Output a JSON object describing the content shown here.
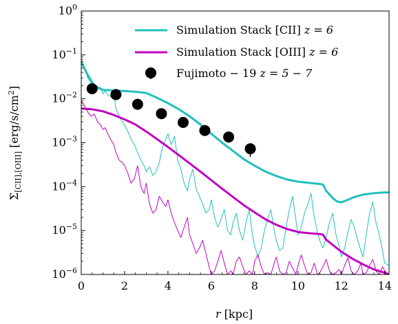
{
  "chart_data": {
    "type": "line",
    "xlabel": "r [kpc]",
    "ylabel": "Σ[CII],[OIII] [erg/s/cm²]",
    "ylabel_parts": {
      "base": "Σ",
      "sub": "[CII],[OIII]",
      "units": " [erg/s/cm",
      "sup": "2",
      "close": "]"
    },
    "xlabel_parts": {
      "var": "r",
      "units": " [kpc]"
    },
    "xlim": [
      0,
      14.2
    ],
    "ylim": [
      1e-06,
      1
    ],
    "yscale": "log",
    "x_ticks": [
      0,
      2,
      4,
      6,
      8,
      10,
      12,
      14
    ],
    "y_ticks": [
      {
        "value": 1e-06,
        "base": "10",
        "exp": "−6"
      },
      {
        "value": 1e-05,
        "base": "10",
        "exp": "−5"
      },
      {
        "value": 0.0001,
        "base": "10",
        "exp": "−4"
      },
      {
        "value": 0.001,
        "base": "10",
        "exp": "−3"
      },
      {
        "value": 0.01,
        "base": "10",
        "exp": "−2"
      },
      {
        "value": 0.1,
        "base": "10",
        "exp": "−1"
      },
      {
        "value": 1,
        "base": "10",
        "exp": "0"
      }
    ],
    "legend_position": "top-right",
    "grid": false,
    "series": [
      {
        "name": "Simulation Stack [CII] z = 6",
        "label_text": "Simulation Stack [CII] ",
        "label_math": "z = 6",
        "kind": "smooth",
        "color": "#1FBFBF",
        "x": [
          0,
          0.3,
          0.6,
          1.0,
          1.5,
          2.0,
          2.5,
          3.0,
          3.5,
          4.0,
          4.5,
          5.0,
          5.5,
          6.0,
          6.5,
          7.0,
          7.5,
          8.0,
          8.5,
          9.0,
          9.5,
          10.0,
          10.5,
          11.0,
          11.15,
          11.3,
          11.6,
          11.8,
          12.0,
          12.3,
          12.6,
          13.0,
          13.5,
          14.0,
          14.2
        ],
        "y": [
          0.07,
          0.035,
          0.02,
          0.016,
          0.0155,
          0.015,
          0.0145,
          0.0135,
          0.0105,
          0.008,
          0.0058,
          0.004,
          0.0026,
          0.0016,
          0.001,
          0.00065,
          0.00042,
          0.0003,
          0.00022,
          0.000175,
          0.000145,
          0.00013,
          0.000122,
          0.000115,
          0.000112,
          8e-05,
          5.5e-05,
          4.6e-05,
          4.4e-05,
          5e-05,
          5.8e-05,
          6.6e-05,
          7.1e-05,
          7.4e-05,
          7.4e-05
        ]
      },
      {
        "name": "Simulation Stack [OIII] z = 6",
        "label_text": "Simulation Stack [OIII] ",
        "label_math": "z = 6",
        "kind": "smooth",
        "color": "#C000C0",
        "x": [
          0,
          0.5,
          1.0,
          1.5,
          2.0,
          2.5,
          3.0,
          3.5,
          4.0,
          4.5,
          5.0,
          5.5,
          6.0,
          6.5,
          7.0,
          7.5,
          8.0,
          8.5,
          9.0,
          9.5,
          10.0,
          10.5,
          11.0,
          11.15,
          11.3,
          11.6,
          12.0,
          12.5,
          13.0,
          13.5,
          14.0,
          14.2
        ],
        "y": [
          0.006,
          0.0058,
          0.0052,
          0.0043,
          0.0034,
          0.0026,
          0.0018,
          0.0012,
          0.0008,
          0.00052,
          0.00034,
          0.00022,
          0.00014,
          9e-05,
          5.8e-05,
          3.8e-05,
          2.6e-05,
          1.8e-05,
          1.35e-05,
          1.08e-05,
          9.3e-06,
          8.7e-06,
          8.3e-06,
          8.1e-06,
          6.2e-06,
          4.7e-06,
          3.3e-06,
          2.3e-06,
          1.7e-06,
          1.3e-06,
          1.1e-06,
          1e-06
        ]
      },
      {
        "name": "Simulation Stack [CII] z = 6 (noisy)",
        "kind": "noisy",
        "color": "#1FBFBF",
        "x": [
          0,
          0.15,
          0.3,
          0.45,
          0.6,
          0.75,
          0.9,
          1.0,
          1.1,
          1.25,
          1.4,
          1.5,
          1.6,
          1.75,
          1.9,
          2.0,
          2.15,
          2.3,
          2.45,
          2.6,
          2.75,
          2.9,
          3.0,
          3.15,
          3.3,
          3.45,
          3.6,
          3.75,
          3.9,
          4.0,
          4.15,
          4.3,
          4.45,
          4.6,
          4.75,
          4.9,
          5.0,
          5.15,
          5.3,
          5.45,
          5.6,
          5.75,
          5.9,
          6.0,
          6.15,
          6.3,
          6.45,
          6.6,
          6.75,
          6.9,
          7.0,
          7.15,
          7.3,
          7.45,
          7.6,
          7.75,
          7.9,
          8.0,
          8.15,
          8.3,
          8.45,
          8.6,
          8.75,
          8.9,
          9.0,
          9.15,
          9.3,
          9.45,
          9.6,
          9.75,
          9.9,
          10.0,
          10.15,
          10.3,
          10.45,
          10.6,
          10.75,
          10.9,
          11.0,
          11.15,
          11.3,
          11.45,
          11.6,
          11.75,
          11.9,
          12.0,
          12.15,
          12.3,
          12.45,
          12.6,
          12.75,
          12.9,
          13.0,
          13.15,
          13.3,
          13.45,
          13.6,
          13.75,
          13.9,
          14.0,
          14.2
        ],
        "y": [
          0.08,
          0.05,
          0.03,
          0.022,
          0.017,
          0.016,
          0.018,
          0.013,
          0.015,
          0.012,
          0.011,
          0.013,
          0.006,
          0.004,
          0.003,
          0.0025,
          0.0018,
          0.0012,
          0.0009,
          0.0006,
          0.0004,
          0.0003,
          0.00022,
          0.00028,
          0.00018,
          0.00022,
          0.00035,
          0.0008,
          0.0012,
          0.0016,
          0.0009,
          0.0014,
          0.0004,
          0.00025,
          0.00012,
          8e-05,
          0.00015,
          0.00025,
          9e-05,
          6e-05,
          4e-05,
          2.5e-05,
          3e-05,
          5e-05,
          2e-05,
          1.2e-05,
          1.8e-05,
          3e-05,
          1e-05,
          8e-06,
          1.5e-05,
          2.5e-05,
          1e-05,
          6e-06,
          1.5e-05,
          3e-05,
          8e-06,
          4.5e-06,
          2.5e-06,
          4e-06,
          1e-05,
          1.8e-05,
          3e-05,
          1e-05,
          6e-06,
          3.5e-06,
          4e-06,
          1.2e-05,
          3e-05,
          6e-05,
          1.8e-05,
          8e-06,
          1.2e-05,
          2.5e-05,
          4e-05,
          7e-05,
          2e-05,
          9e-06,
          6e-06,
          4e-06,
          7e-06,
          1.5e-05,
          2.5e-05,
          8e-06,
          4.5e-06,
          2.5e-06,
          4e-06,
          9e-06,
          1.8e-05,
          1.2e-05,
          6e-06,
          3.5e-06,
          2.5e-06,
          8e-06,
          2.5e-05,
          4.5e-05,
          1.5e-05,
          8e-06,
          3.5e-06,
          1.8e-06,
          1.6e-06
        ]
      },
      {
        "name": "Simulation Stack [OIII] z = 6 (noisy)",
        "kind": "noisy",
        "color": "#C000C0",
        "x": [
          0,
          0.15,
          0.3,
          0.45,
          0.6,
          0.75,
          0.9,
          1.0,
          1.1,
          1.25,
          1.4,
          1.5,
          1.6,
          1.75,
          1.9,
          2.0,
          2.15,
          2.3,
          2.45,
          2.6,
          2.75,
          2.9,
          3.0,
          3.15,
          3.3,
          3.45,
          3.6,
          3.75,
          3.9,
          4.0,
          4.15,
          4.3,
          4.45,
          4.6,
          4.75,
          4.9,
          5.0,
          5.15,
          5.3,
          5.45,
          5.6,
          5.75,
          5.9,
          6.0,
          6.15,
          6.3,
          6.45,
          6.6,
          6.75,
          6.9,
          7.0,
          7.15,
          7.3,
          7.45,
          7.6,
          7.75,
          7.9,
          8.0,
          8.15,
          8.3,
          8.45,
          8.6,
          8.75,
          8.9,
          9.0,
          9.15,
          9.3,
          9.45,
          9.6,
          9.75,
          9.9,
          10.0,
          10.15,
          10.3,
          10.45,
          10.6,
          10.75,
          10.9,
          11.0,
          11.15,
          11.3,
          11.45,
          11.6,
          11.75,
          11.9,
          12.0,
          12.15,
          12.3,
          12.45,
          12.6,
          12.75,
          12.9,
          13.0,
          13.15,
          13.3,
          13.45,
          13.6,
          13.75,
          13.9,
          14.0,
          14.2
        ],
        "y": [
          0.009,
          0.007,
          0.005,
          0.004,
          0.0045,
          0.003,
          0.0025,
          0.002,
          0.0022,
          0.0015,
          0.0011,
          0.0009,
          0.0006,
          0.0004,
          0.00035,
          0.0003,
          0.0002,
          0.00012,
          0.00015,
          0.0003,
          0.0001,
          7e-05,
          0.00012,
          4e-05,
          2.5e-05,
          3e-05,
          6e-05,
          4.5e-05,
          3.5e-05,
          5e-05,
          2.5e-05,
          1.5e-05,
          1e-05,
          7e-06,
          1.2e-05,
          2e-05,
          8e-06,
          5e-06,
          3e-06,
          4e-06,
          6e-06,
          3e-06,
          1.5e-06,
          1e-06,
          1.2e-06,
          2e-06,
          3.5e-06,
          1.8e-06,
          1e-06,
          1.2e-06,
          1e-06,
          2e-06,
          2.5e-06,
          1.5e-06,
          1e-06,
          1.2e-06,
          1e-06,
          2e-06,
          2.8e-06,
          1.5e-06,
          1e-06,
          1.1e-06,
          1e-06,
          1.8e-06,
          2.5e-06,
          1.2e-06,
          1e-06,
          1.1e-06,
          2e-06,
          1.4e-06,
          1e-06,
          1.6e-06,
          2.8e-06,
          1.6e-06,
          1e-06,
          1.1e-06,
          1.8e-06,
          1e-06,
          1.1e-06,
          1.5e-06,
          2.2e-06,
          1.2e-06,
          1e-06,
          1.1e-06,
          1.3e-06,
          1e-06,
          1.6e-06,
          2.4e-06,
          1.2e-06,
          1e-06,
          1.2e-06,
          1.8e-06,
          1e-06,
          1.1e-06,
          1.6e-06,
          2.2e-06,
          1.2e-06,
          1e-06,
          1.5e-06,
          1.2e-06,
          1e-06
        ]
      }
    ],
    "points_series": {
      "name": "Fujimoto − 19 z = 5 − 7",
      "label_text": "Fujimoto − 19 ",
      "label_math": "z = 5 − 7",
      "color": "#000000",
      "x": [
        0.5,
        1.6,
        2.6,
        3.7,
        4.7,
        5.7,
        6.8,
        7.8
      ],
      "y": [
        0.017,
        0.0125,
        0.0075,
        0.0046,
        0.0029,
        0.0019,
        0.00135,
        0.00073
      ],
      "yerr_low": [
        0.0002,
        0.0002,
        0.0002,
        0.0002,
        0.0002,
        0.0002,
        0.00012,
        0.00018
      ],
      "yerr_high": [
        0.0002,
        0.0002,
        0.0002,
        0.0002,
        0.0002,
        0.0002,
        0.00012,
        0.00012
      ]
    }
  }
}
